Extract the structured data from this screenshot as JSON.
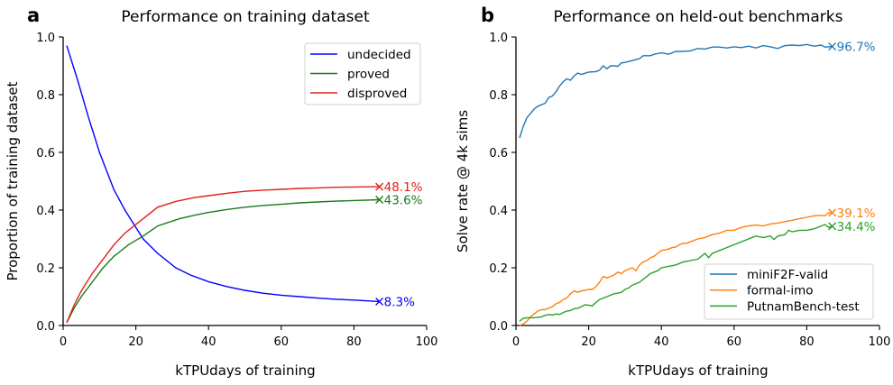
{
  "chart_data": [
    {
      "type": "line",
      "panel_label": "a",
      "title": "Performance on training dataset",
      "xlabel": "kTPUdays of training",
      "ylabel": "Proportion of training dataset",
      "xlim": [
        0,
        100
      ],
      "ylim": [
        0,
        1.0
      ],
      "xticks": [
        "0",
        "20",
        "40",
        "60",
        "80",
        "100"
      ],
      "yticks": [
        "0.0",
        "0.2",
        "0.4",
        "0.6",
        "0.8",
        "1.0"
      ],
      "grid": false,
      "legend": "top-right",
      "series": [
        {
          "name": "undecided",
          "color": "#0000ff",
          "end_label": "8.3%",
          "x": [
            1,
            4,
            7,
            10,
            14,
            17,
            20,
            22,
            26,
            31,
            35,
            40,
            45,
            50,
            55,
            60,
            65,
            70,
            75,
            80,
            87
          ],
          "y": [
            0.97,
            0.85,
            0.72,
            0.6,
            0.47,
            0.4,
            0.34,
            0.3,
            0.25,
            0.2,
            0.175,
            0.152,
            0.135,
            0.122,
            0.112,
            0.105,
            0.1,
            0.095,
            0.091,
            0.088,
            0.083
          ]
        },
        {
          "name": "proved",
          "color": "#1a7a1a",
          "end_label": "43.6%",
          "x": [
            1,
            3,
            5,
            8,
            11,
            14,
            18,
            22,
            26,
            32,
            36,
            40,
            45,
            50,
            55,
            60,
            65,
            70,
            75,
            80,
            87
          ],
          "y": [
            0.01,
            0.06,
            0.1,
            0.15,
            0.2,
            0.24,
            0.28,
            0.31,
            0.345,
            0.37,
            0.382,
            0.392,
            0.402,
            0.41,
            0.416,
            0.42,
            0.425,
            0.428,
            0.431,
            0.433,
            0.436
          ]
        },
        {
          "name": "disproved",
          "color": "#e0201a",
          "end_label": "48.1%",
          "x": [
            1,
            3,
            5,
            8,
            11,
            14,
            17,
            21,
            26,
            31,
            36,
            40,
            45,
            50,
            55,
            60,
            65,
            70,
            75,
            80,
            87
          ],
          "y": [
            0.01,
            0.07,
            0.12,
            0.18,
            0.23,
            0.28,
            0.32,
            0.36,
            0.41,
            0.43,
            0.443,
            0.45,
            0.458,
            0.465,
            0.469,
            0.472,
            0.475,
            0.477,
            0.479,
            0.48,
            0.481
          ]
        }
      ]
    },
    {
      "type": "line",
      "panel_label": "b",
      "title": "Performance on held-out benchmarks",
      "xlabel": "kTPUdays of training",
      "ylabel": "Solve rate @ 4k sims",
      "xlim": [
        0,
        100
      ],
      "ylim": [
        0,
        1.0
      ],
      "xticks": [
        "0",
        "20",
        "40",
        "60",
        "80",
        "100"
      ],
      "yticks": [
        "0.0",
        "0.2",
        "0.4",
        "0.6",
        "0.8",
        "1.0"
      ],
      "grid": false,
      "legend": "bottom-right",
      "series": [
        {
          "name": "miniF2F-valid",
          "color": "#1f77b4",
          "end_label": "96.7%",
          "x": [
            1,
            2,
            3,
            5,
            6,
            8,
            9,
            10,
            11,
            12,
            13,
            14,
            15,
            16,
            17,
            18,
            20,
            22,
            23,
            24,
            25,
            26,
            27,
            28,
            29,
            30,
            32,
            34,
            35,
            37,
            38,
            40,
            42,
            44,
            46,
            48,
            50,
            52,
            54,
            56,
            58,
            60,
            62,
            64,
            66,
            68,
            70,
            72,
            74,
            76,
            78,
            80,
            82,
            84,
            85,
            87
          ],
          "y": [
            0.65,
            0.69,
            0.72,
            0.75,
            0.76,
            0.77,
            0.79,
            0.795,
            0.81,
            0.83,
            0.845,
            0.855,
            0.85,
            0.865,
            0.875,
            0.87,
            0.878,
            0.88,
            0.885,
            0.9,
            0.89,
            0.9,
            0.9,
            0.898,
            0.91,
            0.912,
            0.918,
            0.925,
            0.935,
            0.935,
            0.94,
            0.945,
            0.94,
            0.95,
            0.95,
            0.952,
            0.96,
            0.958,
            0.965,
            0.965,
            0.962,
            0.966,
            0.963,
            0.968,
            0.962,
            0.97,
            0.966,
            0.96,
            0.97,
            0.972,
            0.97,
            0.974,
            0.968,
            0.972,
            0.965,
            0.967
          ]
        },
        {
          "name": "formal-imo",
          "color": "#ff7f0e",
          "end_label": "39.1%",
          "x": [
            1,
            2,
            3,
            4,
            5,
            6,
            7,
            8,
            9,
            10,
            11,
            12,
            13,
            14,
            15,
            16,
            17,
            18,
            19,
            20,
            21,
            22,
            23,
            24,
            25,
            26,
            27,
            28,
            29,
            30,
            31,
            32,
            33,
            34,
            35,
            36,
            37,
            38,
            39,
            40,
            41,
            42,
            43,
            44,
            45,
            46,
            47,
            48,
            50,
            52,
            54,
            56,
            58,
            60,
            62,
            64,
            66,
            68,
            70,
            72,
            74,
            76,
            78,
            80,
            82,
            84,
            85,
            86,
            87
          ],
          "y": [
            0.0,
            0.005,
            0.015,
            0.03,
            0.04,
            0.05,
            0.055,
            0.055,
            0.06,
            0.065,
            0.075,
            0.08,
            0.09,
            0.095,
            0.11,
            0.12,
            0.115,
            0.12,
            0.122,
            0.125,
            0.125,
            0.135,
            0.15,
            0.17,
            0.165,
            0.17,
            0.175,
            0.185,
            0.18,
            0.19,
            0.195,
            0.2,
            0.19,
            0.21,
            0.22,
            0.225,
            0.235,
            0.24,
            0.25,
            0.26,
            0.262,
            0.265,
            0.27,
            0.272,
            0.28,
            0.285,
            0.285,
            0.29,
            0.3,
            0.305,
            0.315,
            0.32,
            0.33,
            0.33,
            0.34,
            0.345,
            0.348,
            0.345,
            0.352,
            0.355,
            0.36,
            0.365,
            0.37,
            0.375,
            0.38,
            0.382,
            0.38,
            0.39,
            0.391
          ]
        },
        {
          "name": "PutnamBench-test",
          "color": "#2ca02c",
          "end_label": "34.4%",
          "x": [
            1,
            2,
            3,
            5,
            7,
            8,
            9,
            10,
            11,
            12,
            13,
            14,
            15,
            16,
            17,
            18,
            19,
            20,
            21,
            22,
            23,
            24,
            25,
            26,
            27,
            28,
            29,
            30,
            31,
            32,
            33,
            34,
            35,
            36,
            37,
            38,
            39,
            40,
            42,
            44,
            46,
            48,
            50,
            52,
            53,
            54,
            56,
            58,
            60,
            62,
            64,
            66,
            68,
            70,
            71,
            72,
            74,
            75,
            76,
            78,
            80,
            82,
            84,
            85,
            86,
            87
          ],
          "y": [
            0.015,
            0.025,
            0.027,
            0.027,
            0.03,
            0.035,
            0.038,
            0.036,
            0.04,
            0.038,
            0.045,
            0.05,
            0.052,
            0.058,
            0.06,
            0.065,
            0.072,
            0.07,
            0.068,
            0.08,
            0.09,
            0.095,
            0.1,
            0.105,
            0.11,
            0.112,
            0.115,
            0.125,
            0.13,
            0.14,
            0.145,
            0.15,
            0.16,
            0.17,
            0.18,
            0.185,
            0.19,
            0.2,
            0.205,
            0.21,
            0.22,
            0.225,
            0.23,
            0.25,
            0.235,
            0.25,
            0.26,
            0.27,
            0.28,
            0.29,
            0.3,
            0.31,
            0.305,
            0.31,
            0.298,
            0.31,
            0.315,
            0.33,
            0.325,
            0.33,
            0.33,
            0.335,
            0.345,
            0.35,
            0.34,
            0.344
          ]
        }
      ]
    }
  ]
}
